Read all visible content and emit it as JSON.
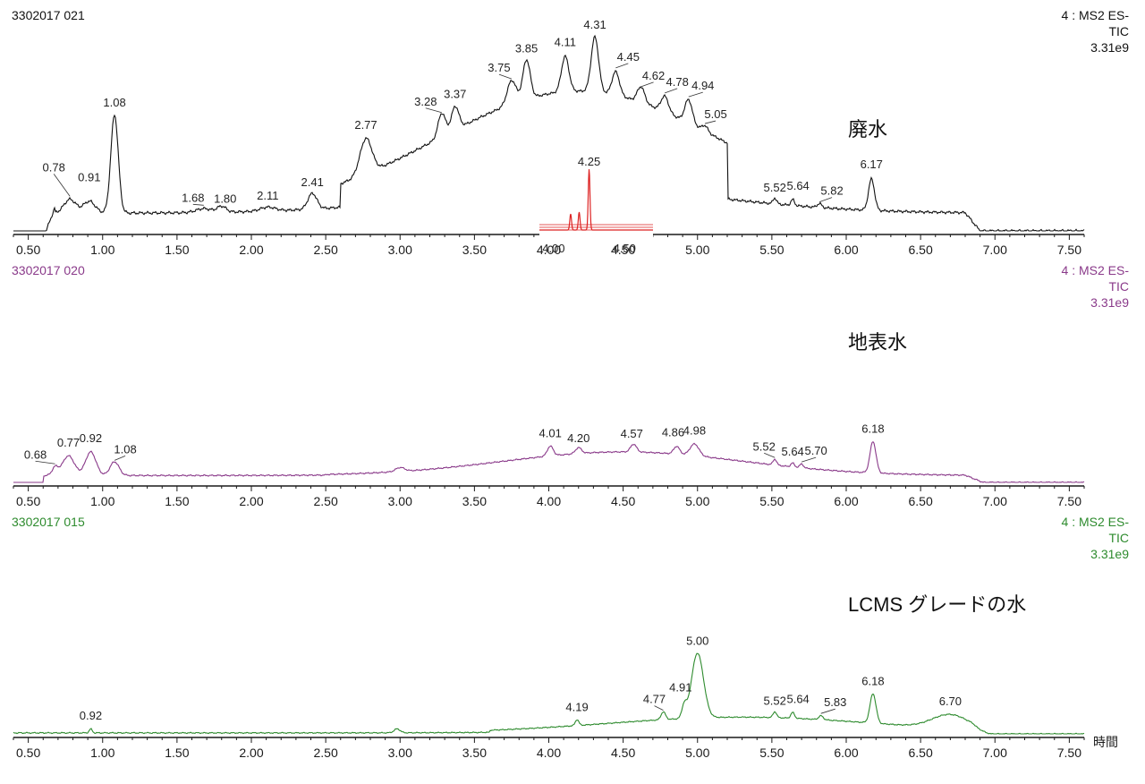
{
  "axis_unit_label": "時間",
  "inset": {
    "peak_label": "4.25",
    "ticks": [
      "4.00",
      "4.50"
    ],
    "color": "#dd2222"
  },
  "chart_data": [
    {
      "type": "line",
      "run_id": "3302017 021",
      "name": "廃水",
      "instrument": [
        "4 : MS2 ES-",
        "TIC",
        "3.31e9"
      ],
      "color": "#111111",
      "xlim": [
        0.4,
        7.6
      ],
      "xticks": [
        "0.50",
        "1.00",
        "1.50",
        "2.00",
        "2.50",
        "3.00",
        "3.50",
        "4.00",
        "4.50",
        "5.00",
        "5.50",
        "6.00",
        "6.50",
        "7.00",
        "7.50"
      ],
      "peaks": [
        {
          "label": "0.78",
          "rt": 0.78
        },
        {
          "label": "0.91",
          "rt": 0.91
        },
        {
          "label": "1.08",
          "rt": 1.08
        },
        {
          "label": "1.68",
          "rt": 1.68
        },
        {
          "label": "1.80",
          "rt": 1.8
        },
        {
          "label": "2.11",
          "rt": 2.11
        },
        {
          "label": "2.41",
          "rt": 2.41
        },
        {
          "label": "2.77",
          "rt": 2.77
        },
        {
          "label": "3.28",
          "rt": 3.28
        },
        {
          "label": "3.37",
          "rt": 3.37
        },
        {
          "label": "3.75",
          "rt": 3.75
        },
        {
          "label": "3.85",
          "rt": 3.85
        },
        {
          "label": "4.11",
          "rt": 4.11
        },
        {
          "label": "4.31",
          "rt": 4.31
        },
        {
          "label": "4.45",
          "rt": 4.45
        },
        {
          "label": "4.62",
          "rt": 4.62
        },
        {
          "label": "4.78",
          "rt": 4.78
        },
        {
          "label": "4.94",
          "rt": 4.94
        },
        {
          "label": "5.05",
          "rt": 5.05
        },
        {
          "label": "5.52",
          "rt": 5.52
        },
        {
          "label": "5.64",
          "rt": 5.64
        },
        {
          "label": "5.82",
          "rt": 5.82
        },
        {
          "label": "6.17",
          "rt": 6.17
        }
      ]
    },
    {
      "type": "line",
      "run_id": "3302017 020",
      "name": "地表水",
      "instrument": [
        "4 : MS2 ES-",
        "TIC",
        "3.31e9"
      ],
      "color": "#8a3a8a",
      "xlim": [
        0.4,
        7.6
      ],
      "xticks": [
        "0.50",
        "1.00",
        "1.50",
        "2.00",
        "2.50",
        "3.00",
        "3.50",
        "4.00",
        "4.50",
        "5.00",
        "5.50",
        "6.00",
        "6.50",
        "7.00",
        "7.50"
      ],
      "peaks": [
        {
          "label": "0.68",
          "rt": 0.68
        },
        {
          "label": "0.77",
          "rt": 0.77
        },
        {
          "label": "0.92",
          "rt": 0.92
        },
        {
          "label": "1.08",
          "rt": 1.08
        },
        {
          "label": "4.01",
          "rt": 4.01
        },
        {
          "label": "4.20",
          "rt": 4.2
        },
        {
          "label": "4.57",
          "rt": 4.57
        },
        {
          "label": "4.86",
          "rt": 4.86
        },
        {
          "label": "4.98",
          "rt": 4.98
        },
        {
          "label": "5.52",
          "rt": 5.52
        },
        {
          "label": "5.64",
          "rt": 5.64
        },
        {
          "label": "5.70",
          "rt": 5.7
        },
        {
          "label": "6.18",
          "rt": 6.18
        }
      ]
    },
    {
      "type": "line",
      "run_id": "3302017 015",
      "name": "LCMS グレードの水",
      "instrument": [
        "4 : MS2 ES-",
        "TIC",
        "3.31e9"
      ],
      "color": "#2e8b2e",
      "xlim": [
        0.4,
        7.6
      ],
      "xticks": [
        "0.50",
        "1.00",
        "1.50",
        "2.00",
        "2.50",
        "3.00",
        "3.50",
        "4.00",
        "4.50",
        "5.00",
        "5.50",
        "6.00",
        "6.50",
        "7.00",
        "7.50"
      ],
      "peaks": [
        {
          "label": "0.92",
          "rt": 0.92
        },
        {
          "label": "4.19",
          "rt": 4.19
        },
        {
          "label": "4.77",
          "rt": 4.77
        },
        {
          "label": "4.91",
          "rt": 4.91
        },
        {
          "label": "5.00",
          "rt": 5.0
        },
        {
          "label": "5.52",
          "rt": 5.52
        },
        {
          "label": "5.64",
          "rt": 5.64
        },
        {
          "label": "5.83",
          "rt": 5.83
        },
        {
          "label": "6.18",
          "rt": 6.18
        },
        {
          "label": "6.70",
          "rt": 6.7
        }
      ]
    }
  ]
}
